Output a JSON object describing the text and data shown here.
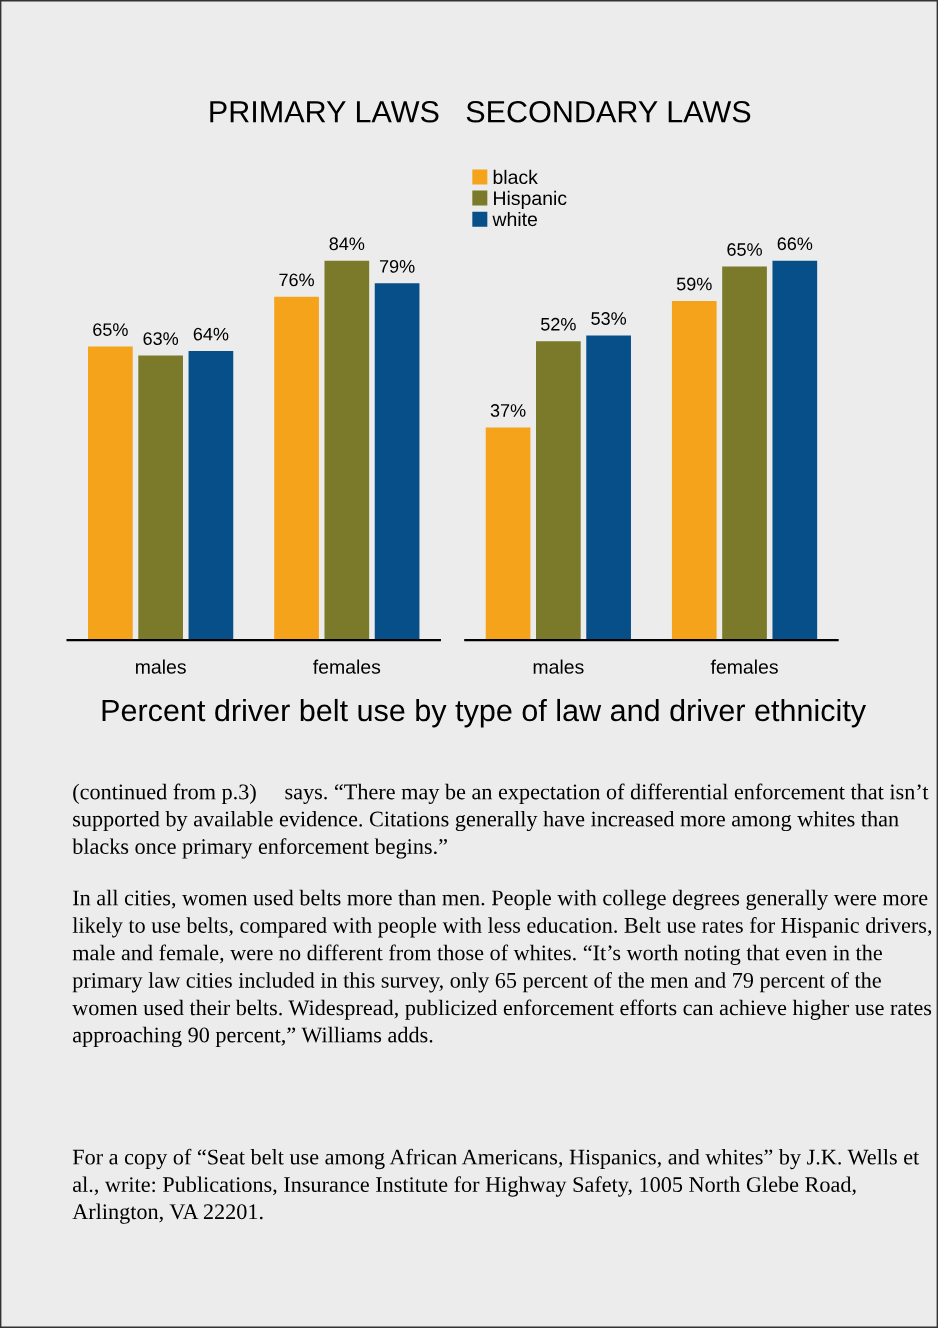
{
  "chart_data": [
    {
      "type": "bar",
      "title": "PRIMARY LAWS",
      "categories": [
        "males",
        "females"
      ],
      "grid": false,
      "tick_labels": "x",
      "series": [
        {
          "color": "#f5a31a",
          "values": [
            65,
            76
          ],
          "value_labels": [
            "65%",
            "76%"
          ]
        },
        {
          "color": "#7a7a2a",
          "values": [
            63,
            84
          ],
          "value_labels": [
            "63%",
            "84%"
          ]
        },
        {
          "color": "#064f88",
          "values": [
            64,
            79
          ],
          "value_labels": [
            "64%",
            "79%"
          ]
        }
      ],
      "annotations": [
        "Percent driver belt use by type of law and driver ethnicity",
        "(continued from p.3)     says. “There may be an expectation of differential enforcement that isn’t supported by available evidence. Citations generally have increased more among whites than blacks once primary enforcement begins.”",
        "In all cities, women used belts more than men. People with college degrees generally were more likely to use belts, compared with people with less education. Belt use rates for Hispanic drivers, male and female, were no different from those of whites. “It’s worth noting that even in the primary law cities included in this survey, only 65 percent of the men and 79 percent of the women used their belts. Widespread, publicized enforcement efforts can achieve higher use rates approaching 90 percent,” Williams adds.",
        "For a copy of “Seat belt use among African Americans, Hispanics, and whites” by J.K. Wells et al., write: Publications, Insurance Institute for Highway Safety, 1005 North Glebe Road, Arlington, VA 22201."
      ]
    },
    {
      "type": "bar",
      "title": "SECONDARY LAWS",
      "categories": [
        "males",
        "females"
      ],
      "legend": "top left",
      "grid": false,
      "tick_labels": "x",
      "series": [
        {
          "name": "black",
          "color": "#f5a31a",
          "values": [
            37,
            59
          ],
          "value_labels": [
            "37%",
            "59%"
          ]
        },
        {
          "name": "Hispanic",
          "color": "#7a7a2a",
          "values": [
            52,
            65
          ],
          "value_labels": [
            "52%",
            "65%"
          ]
        },
        {
          "name": "white",
          "color": "#064f88",
          "values": [
            53,
            66
          ],
          "value_labels": [
            "53%",
            "66%"
          ]
        }
      ]
    }
  ]
}
